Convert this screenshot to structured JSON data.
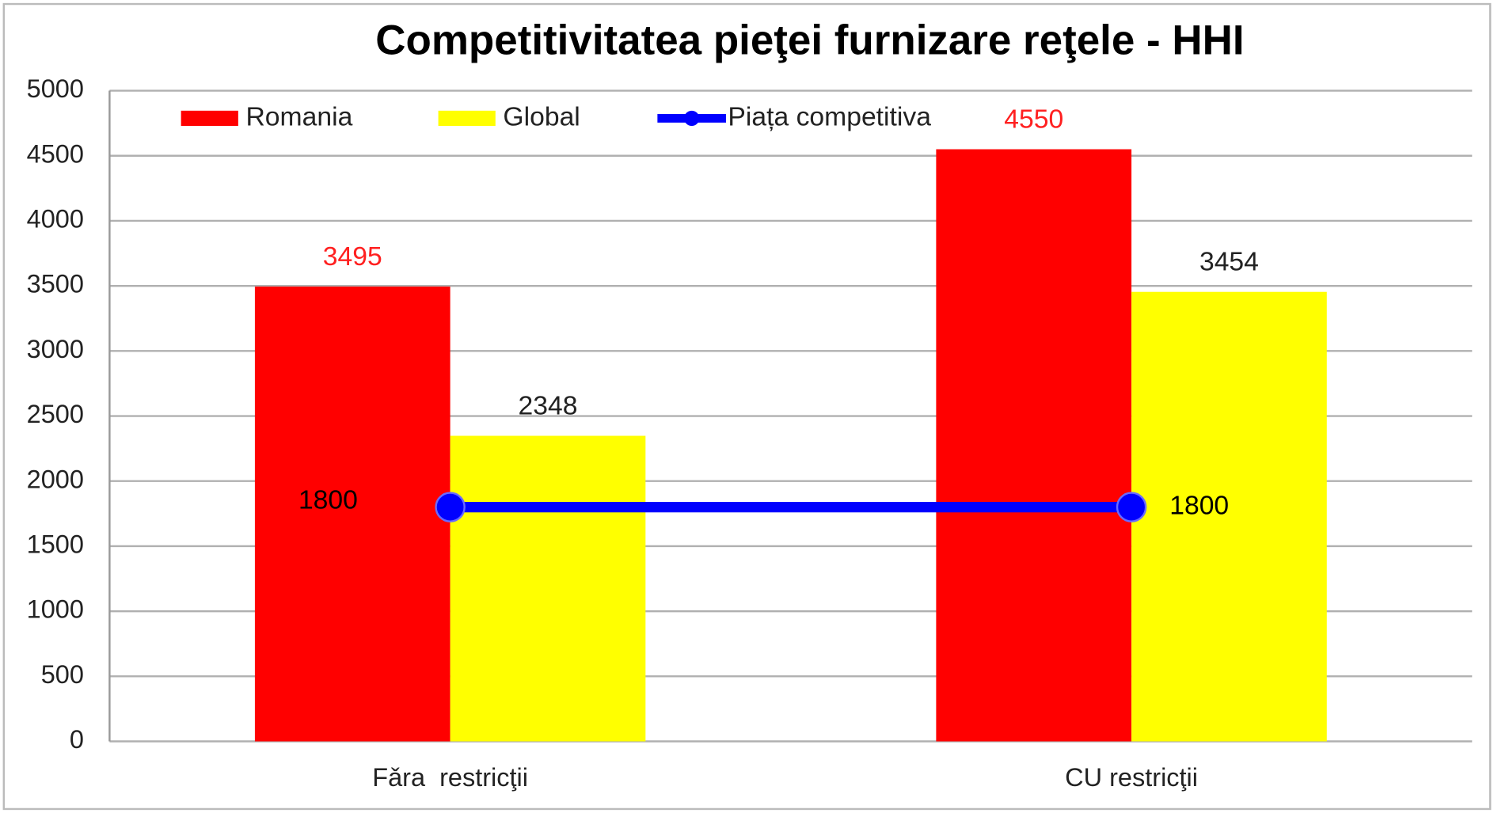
{
  "chart_data": {
    "type": "bar",
    "title": "Competitivitatea pieţei furnizare reţele - HHI",
    "categories": [
      "Fǎra  restricţii",
      "CU restricţii"
    ],
    "series": [
      {
        "name": "Romania",
        "color": "#ff0000",
        "label_color": "#ff2020",
        "values": [
          3495,
          4550
        ]
      },
      {
        "name": "Global",
        "color": "#ffff00",
        "label_color": "#222222",
        "values": [
          2348,
          3454
        ]
      },
      {
        "name": "Piața competitiva",
        "type": "line",
        "color": "#0000ff",
        "label_color": "#000000",
        "values": [
          1800,
          1800
        ]
      }
    ],
    "ylim": [
      0,
      5000
    ],
    "yticks": [
      0,
      500,
      1000,
      1500,
      2000,
      2500,
      3000,
      3500,
      4000,
      4500,
      5000
    ],
    "grid": true,
    "legend": "top-left"
  }
}
